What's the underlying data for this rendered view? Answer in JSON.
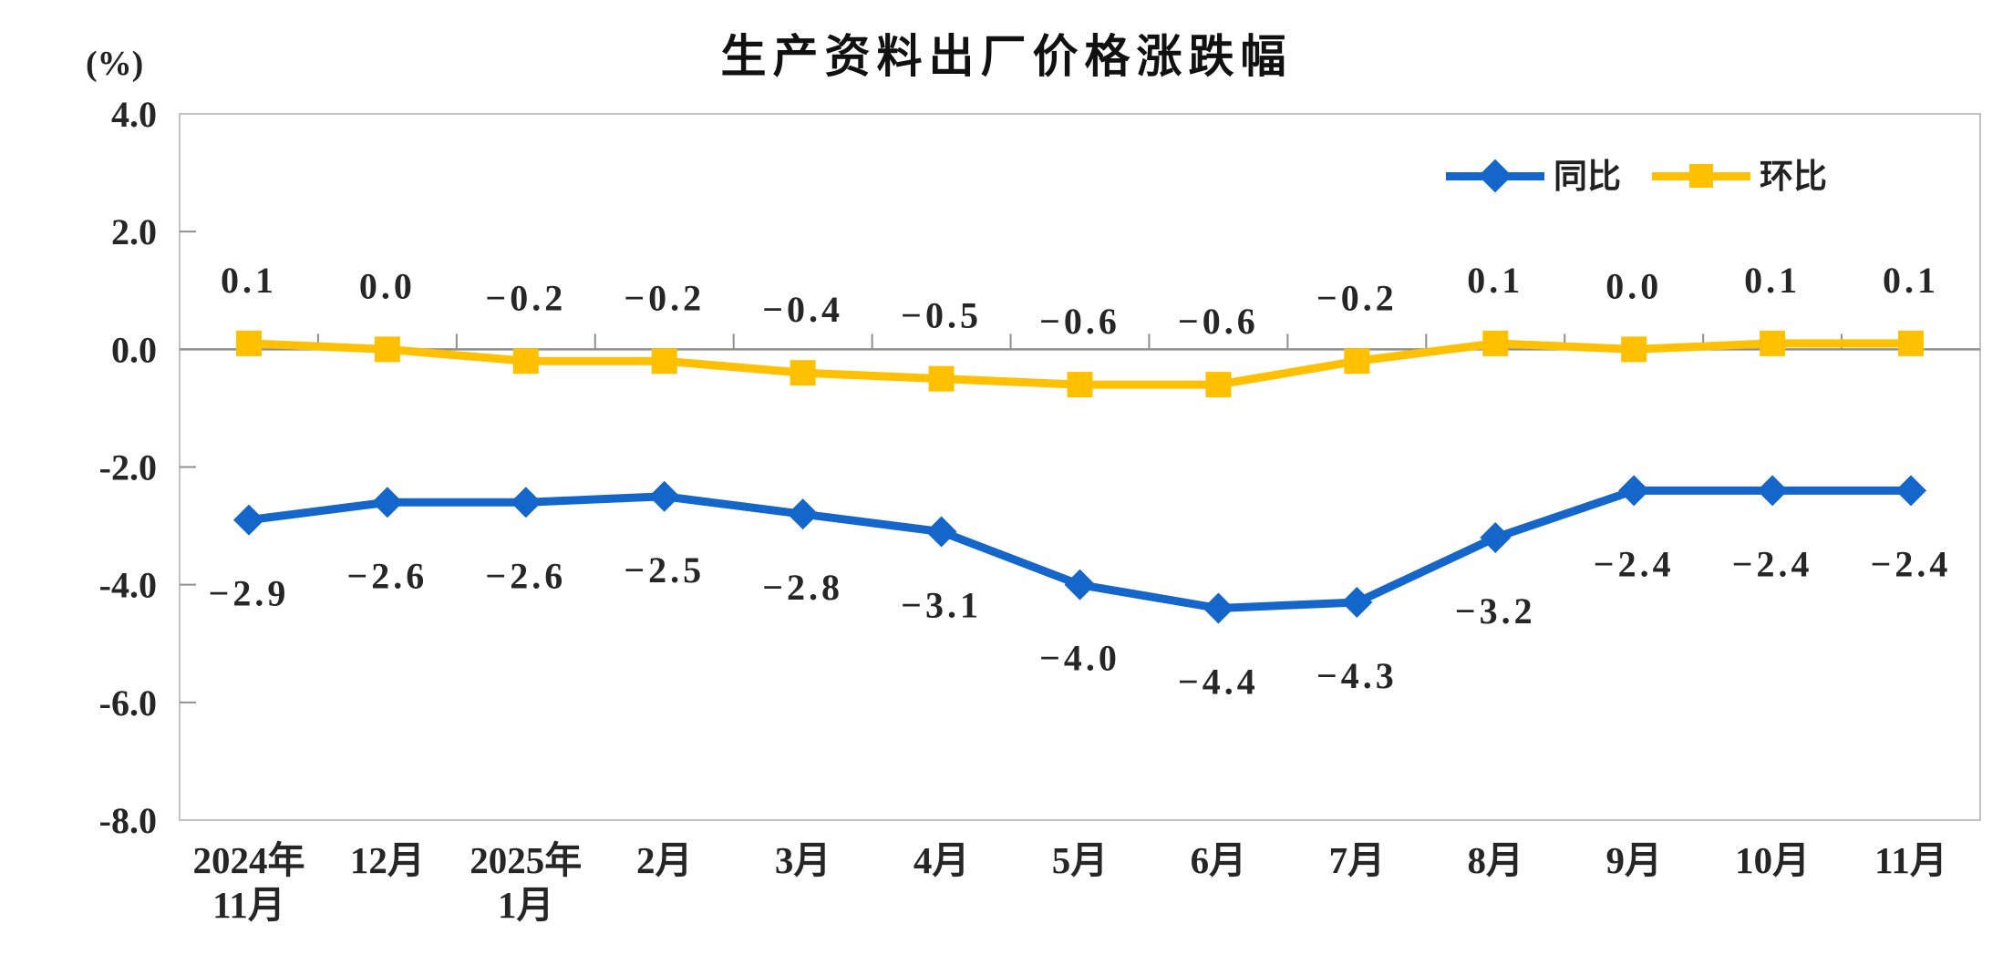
{
  "chart_data": {
    "type": "line",
    "title": "生产资料出厂价格涨跌幅",
    "unit_label": "(%)",
    "categories": [
      [
        "2024年",
        "11月"
      ],
      [
        "12月"
      ],
      [
        "2025年",
        "1月"
      ],
      [
        "2月"
      ],
      [
        "3月"
      ],
      [
        "4月"
      ],
      [
        "5月"
      ],
      [
        "6月"
      ],
      [
        "7月"
      ],
      [
        "8月"
      ],
      [
        "9月"
      ],
      [
        "10月"
      ],
      [
        "11月"
      ]
    ],
    "series": [
      {
        "name": "同比",
        "marker": "diamond",
        "color": "#1566CB",
        "values": [
          -2.9,
          -2.6,
          -2.6,
          -2.5,
          -2.8,
          -3.1,
          -4.0,
          -4.4,
          -4.3,
          -3.2,
          -2.4,
          -2.4,
          -2.4
        ],
        "labels": [
          "−2.9",
          "−2.6",
          "−2.6",
          "−2.5",
          "−2.8",
          "−3.1",
          "−4.0",
          "−4.4",
          "−4.3",
          "−3.2",
          "−2.4",
          "−2.4",
          "−2.4"
        ]
      },
      {
        "name": "环比",
        "marker": "square",
        "color": "#FFC000",
        "values": [
          0.1,
          0.0,
          -0.2,
          -0.2,
          -0.4,
          -0.5,
          -0.6,
          -0.6,
          -0.2,
          0.1,
          0.0,
          0.1,
          0.1
        ],
        "labels": [
          "0.1",
          "0.0",
          "−0.2",
          "−0.2",
          "−0.4",
          "−0.5",
          "−0.6",
          "−0.6",
          "−0.2",
          "0.1",
          "0.0",
          "0.1",
          "0.1"
        ]
      }
    ],
    "ylim": [
      -8.0,
      4.0
    ],
    "yticks": [
      4.0,
      2.0,
      0.0,
      -2.0,
      -4.0,
      -6.0,
      -8.0
    ],
    "ytick_labels": [
      "4.0",
      "2.0",
      "0.0",
      "-2.0",
      "-4.0",
      "-6.0",
      "-8.0"
    ],
    "xlabel": "",
    "ylabel": "",
    "grid": "zero-line-only",
    "legend_position": "top-right-inside",
    "colors": {
      "plot_border": "#C2C2C2",
      "axis_line": "#8F8F8F",
      "tick": "#8F8F8F",
      "label_text": "#262626"
    }
  }
}
